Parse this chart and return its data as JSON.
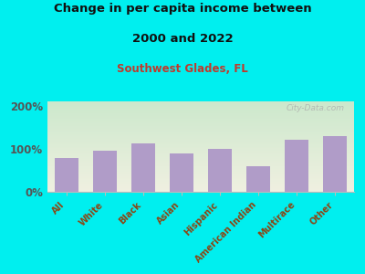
{
  "title_line1": "Change in per capita income between",
  "title_line2": "2000 and 2022",
  "subtitle": "Southwest Glades, FL",
  "categories": [
    "All",
    "White",
    "Black",
    "Asian",
    "Hispanic",
    "American Indian",
    "Multirace",
    "Other"
  ],
  "values": [
    78,
    96,
    112,
    90,
    99,
    60,
    120,
    130
  ],
  "bar_color": "#b09cc8",
  "title_color": "#111111",
  "subtitle_color": "#c0392b",
  "background_outer": "#00efef",
  "background_inner_top": "#cce8cc",
  "background_inner_bottom": "#f0f0e0",
  "yticks": [
    0,
    100,
    200
  ],
  "ytick_labels": [
    "0%",
    "100%",
    "200%"
  ],
  "ylim": [
    0,
    210
  ],
  "watermark": "City-Data.com",
  "ytick_color": "#555555",
  "xtick_color": "#8B4513"
}
